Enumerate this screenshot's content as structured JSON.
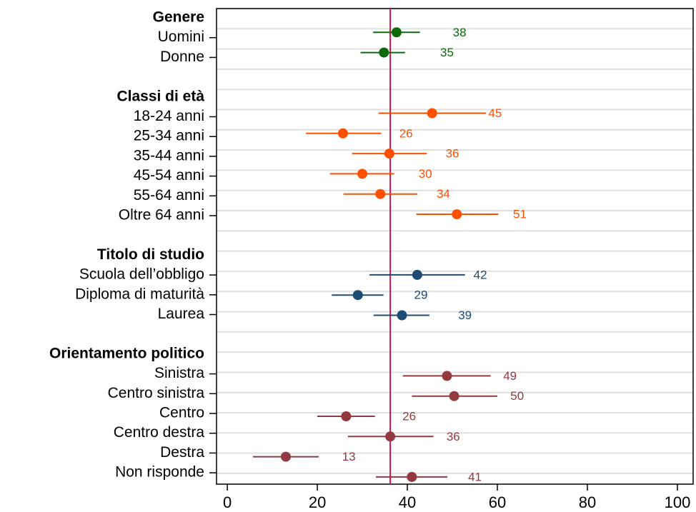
{
  "chart_data": {
    "type": "dot",
    "xlim": [
      -2.4,
      103.5
    ],
    "xticks": [
      0,
      20,
      40,
      60,
      80,
      100
    ],
    "reference_line": {
      "value": 36.2,
      "color": "#c8174a"
    },
    "groups": [
      {
        "heading": "Genere",
        "color": "#0b6a0b",
        "categories": [
          "Uomini",
          "Donne"
        ],
        "values": [
          37.6,
          34.8
        ],
        "lower": [
          32.4,
          29.6
        ],
        "upper": [
          42.8,
          39.5
        ],
        "value_labels": [
          "38",
          "35"
        ]
      },
      {
        "heading": "Classi di età",
        "color": "#ff5000",
        "categories": [
          "18-24 anni",
          "25-34 anni",
          "35-44 anni",
          "45-54 anni",
          "55-64 anni",
          "Oltre 64 anni"
        ],
        "values": [
          45.5,
          25.7,
          36.0,
          30.0,
          34.0,
          51.0
        ],
        "lower": [
          33.6,
          17.5,
          27.7,
          22.8,
          25.8,
          42.0
        ],
        "upper": [
          57.5,
          34.2,
          44.3,
          37.1,
          42.2,
          60.2
        ],
        "value_labels": [
          "45",
          "26",
          "36",
          "30",
          "34",
          "51"
        ]
      },
      {
        "heading": "Titolo di studio",
        "color": "#1e4b73",
        "categories": [
          "Scuola dell’obbligo",
          "Diploma di maturità",
          "Laurea"
        ],
        "values": [
          42.2,
          29.0,
          38.8
        ],
        "lower": [
          31.6,
          23.2,
          32.5
        ],
        "upper": [
          52.8,
          34.7,
          44.9
        ],
        "value_labels": [
          "42",
          "29",
          "39"
        ]
      },
      {
        "heading": "Orientamento politico",
        "color": "#923a40",
        "categories": [
          "Sinistra",
          "Centro sinistra",
          "Centro",
          "Centro destra",
          "Destra",
          "Non risponde"
        ],
        "values": [
          48.8,
          50.4,
          26.4,
          36.2,
          13.0,
          41.0
        ],
        "lower": [
          39.0,
          41.0,
          20.0,
          26.8,
          5.7,
          33.0
        ],
        "upper": [
          58.5,
          60.0,
          32.8,
          45.8,
          20.3,
          48.9
        ],
        "value_labels": [
          "49",
          "50",
          "26",
          "36",
          "13",
          "41"
        ]
      }
    ]
  }
}
